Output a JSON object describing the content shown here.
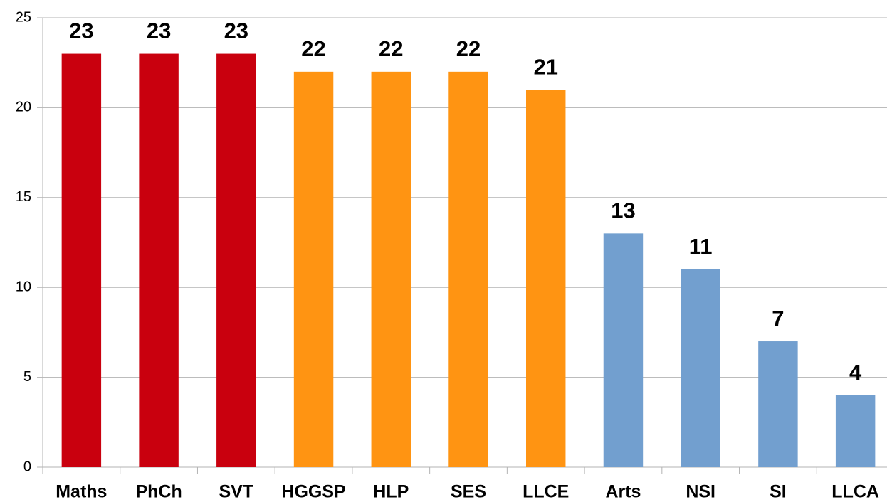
{
  "chart_data": {
    "type": "bar",
    "categories": [
      "Maths",
      "PhCh",
      "SVT",
      "HGGSP",
      "HLP",
      "SES",
      "LLCE",
      "Arts",
      "NSI",
      "SI",
      "LLCA"
    ],
    "values": [
      23,
      23,
      23,
      22,
      22,
      22,
      21,
      13,
      11,
      7,
      4
    ],
    "colors": [
      "#c9000e",
      "#c9000e",
      "#c9000e",
      "#ff9412",
      "#ff9412",
      "#ff9412",
      "#ff9412",
      "#729fcf",
      "#729fcf",
      "#729fcf",
      "#729fcf"
    ],
    "ylim": [
      0,
      25
    ],
    "yticks": [
      0,
      5,
      10,
      15,
      20,
      25
    ],
    "grid": true
  }
}
